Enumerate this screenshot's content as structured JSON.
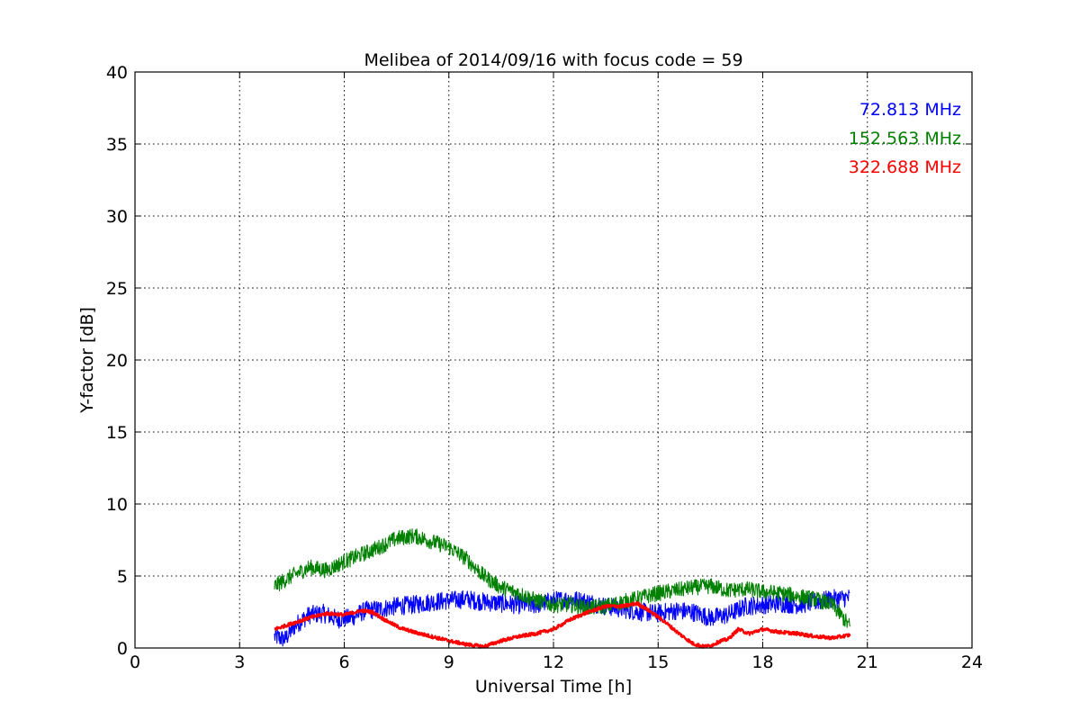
{
  "chart_data": {
    "type": "line",
    "title": "Melibea of 2014/09/16 with focus code = 59",
    "xlabel": "Universal Time [h]",
    "ylabel": "Y-factor [dB]",
    "xlim": [
      0,
      24
    ],
    "ylim": [
      0,
      40
    ],
    "xticks": [
      0,
      3,
      6,
      9,
      12,
      15,
      18,
      21,
      24
    ],
    "yticks": [
      0,
      5,
      10,
      15,
      20,
      25,
      30,
      35,
      40
    ],
    "grid": true,
    "legend_placement": "top-right",
    "series": [
      {
        "name": "72.813 MHz",
        "color": "#0000ff",
        "noise": 0.65,
        "x": [
          4.0,
          4.3,
          4.6,
          5.0,
          5.4,
          5.8,
          6.2,
          6.6,
          7.0,
          7.5,
          8.0,
          8.5,
          9.0,
          9.5,
          10.0,
          10.5,
          11.0,
          11.5,
          12.0,
          12.5,
          13.0,
          13.5,
          14.0,
          14.5,
          15.0,
          15.5,
          16.0,
          16.5,
          17.0,
          17.5,
          18.0,
          18.5,
          19.0,
          19.5,
          20.0,
          20.5
        ],
        "y": [
          0.8,
          0.6,
          1.6,
          2.3,
          2.4,
          2.0,
          2.1,
          2.6,
          2.7,
          2.9,
          3.0,
          3.2,
          3.3,
          3.4,
          3.2,
          3.1,
          3.0,
          3.0,
          3.3,
          3.4,
          3.2,
          2.9,
          2.7,
          2.5,
          2.4,
          2.6,
          2.5,
          2.1,
          2.3,
          2.9,
          3.0,
          3.1,
          3.0,
          3.2,
          3.4,
          3.5
        ]
      },
      {
        "name": "152.563 MHz",
        "color": "#008000",
        "noise": 0.55,
        "x": [
          4.0,
          4.5,
          5.0,
          5.5,
          6.0,
          6.5,
          7.0,
          7.5,
          8.0,
          8.5,
          9.0,
          9.5,
          10.0,
          10.5,
          11.0,
          11.5,
          12.0,
          12.5,
          13.0,
          13.5,
          14.0,
          14.5,
          15.0,
          15.5,
          16.0,
          16.5,
          17.0,
          17.5,
          18.0,
          18.5,
          19.0,
          19.5,
          20.0,
          20.5
        ],
        "y": [
          4.3,
          5.0,
          5.6,
          5.4,
          6.0,
          6.5,
          7.0,
          7.6,
          7.8,
          7.4,
          7.0,
          6.2,
          5.0,
          4.2,
          3.8,
          3.3,
          3.0,
          3.0,
          2.8,
          2.9,
          3.2,
          3.5,
          3.8,
          4.0,
          4.2,
          4.3,
          4.0,
          4.1,
          3.9,
          3.8,
          3.6,
          3.4,
          3.0,
          1.5
        ]
      },
      {
        "name": "322.688 MHz",
        "color": "#ff0000",
        "noise": 0.12,
        "x": [
          4.0,
          4.5,
          5.0,
          5.5,
          6.0,
          6.5,
          6.8,
          7.2,
          7.6,
          8.0,
          8.5,
          9.0,
          9.5,
          10.0,
          10.5,
          11.0,
          11.5,
          12.0,
          12.5,
          13.0,
          13.5,
          14.0,
          14.4,
          14.8,
          15.2,
          15.6,
          16.0,
          16.3,
          16.5,
          16.8,
          17.0,
          17.3,
          17.6,
          18.0,
          18.5,
          19.0,
          19.5,
          20.0,
          20.5
        ],
        "y": [
          1.3,
          1.7,
          2.1,
          2.4,
          2.3,
          2.6,
          2.5,
          1.9,
          1.4,
          1.1,
          0.8,
          0.5,
          0.25,
          0.1,
          0.5,
          0.8,
          1.0,
          1.3,
          2.0,
          2.5,
          2.9,
          2.9,
          3.1,
          2.5,
          1.8,
          1.0,
          0.3,
          0.1,
          0.15,
          0.5,
          0.6,
          1.3,
          1.0,
          1.3,
          1.1,
          1.0,
          0.8,
          0.7,
          0.9
        ]
      }
    ]
  }
}
